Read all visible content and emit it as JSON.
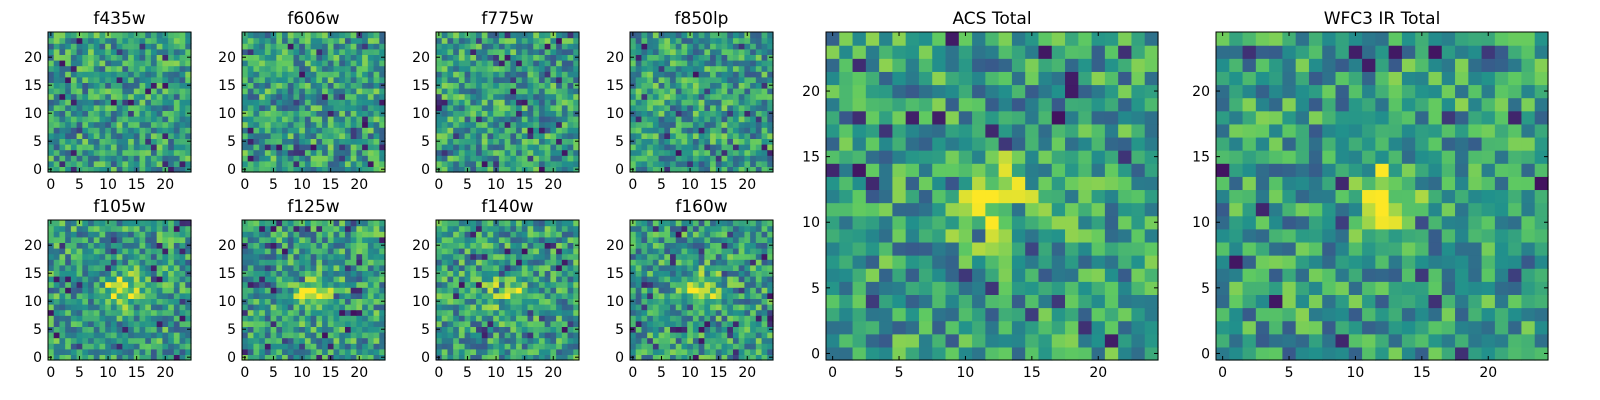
{
  "figure": {
    "colormap": [
      "#440154",
      "#3b528b",
      "#21918c",
      "#5ec962",
      "#fde725"
    ],
    "seed_note": ""
  },
  "chart_data": [
    {
      "type": "heatmap",
      "title": "f435w",
      "grid": [
        25,
        25
      ],
      "xticks": [
        0,
        5,
        10,
        15,
        20
      ],
      "yticks": [
        0,
        5,
        10,
        15,
        20
      ],
      "xlim": [
        0,
        24
      ],
      "ylim": [
        0,
        24
      ],
      "colorbar": false,
      "legend": "none"
    },
    {
      "type": "heatmap",
      "title": "f606w",
      "grid": [
        25,
        25
      ],
      "xticks": [
        0,
        5,
        10,
        15,
        20
      ],
      "yticks": [
        0,
        5,
        10,
        15,
        20
      ],
      "xlim": [
        0,
        24
      ],
      "ylim": [
        0,
        24
      ],
      "colorbar": false,
      "legend": "none"
    },
    {
      "type": "heatmap",
      "title": "f775w",
      "grid": [
        25,
        25
      ],
      "xticks": [
        0,
        5,
        10,
        15,
        20
      ],
      "yticks": [
        0,
        5,
        10,
        15,
        20
      ],
      "xlim": [
        0,
        24
      ],
      "ylim": [
        0,
        24
      ],
      "colorbar": false,
      "legend": "none"
    },
    {
      "type": "heatmap",
      "title": "f850lp",
      "grid": [
        25,
        25
      ],
      "xticks": [
        0,
        5,
        10,
        15,
        20
      ],
      "yticks": [
        0,
        5,
        10,
        15,
        20
      ],
      "xlim": [
        0,
        24
      ],
      "ylim": [
        0,
        24
      ],
      "colorbar": false,
      "legend": "none"
    },
    {
      "type": "heatmap",
      "title": "f105w",
      "grid": [
        25,
        25
      ],
      "xticks": [
        0,
        5,
        10,
        15,
        20
      ],
      "yticks": [
        0,
        5,
        10,
        15,
        20
      ],
      "xlim": [
        0,
        24
      ],
      "ylim": [
        0,
        24
      ],
      "colorbar": false,
      "legend": "none"
    },
    {
      "type": "heatmap",
      "title": "f125w",
      "grid": [
        25,
        25
      ],
      "xticks": [
        0,
        5,
        10,
        15,
        20
      ],
      "yticks": [
        0,
        5,
        10,
        15,
        20
      ],
      "xlim": [
        0,
        24
      ],
      "ylim": [
        0,
        24
      ],
      "colorbar": false,
      "legend": "none"
    },
    {
      "type": "heatmap",
      "title": "f140w",
      "grid": [
        25,
        25
      ],
      "xticks": [
        0,
        5,
        10,
        15,
        20
      ],
      "yticks": [
        0,
        5,
        10,
        15,
        20
      ],
      "xlim": [
        0,
        24
      ],
      "ylim": [
        0,
        24
      ],
      "colorbar": false,
      "legend": "none"
    },
    {
      "type": "heatmap",
      "title": "f160w",
      "grid": [
        25,
        25
      ],
      "xticks": [
        0,
        5,
        10,
        15,
        20
      ],
      "yticks": [
        0,
        5,
        10,
        15,
        20
      ],
      "xlim": [
        0,
        24
      ],
      "ylim": [
        0,
        24
      ],
      "colorbar": false,
      "legend": "none"
    },
    {
      "type": "heatmap",
      "title": "ACS Total",
      "grid": [
        25,
        25
      ],
      "xticks": [
        0,
        5,
        10,
        15,
        20
      ],
      "yticks": [
        0,
        5,
        10,
        15,
        20
      ],
      "xlim": [
        0,
        24
      ],
      "ylim": [
        0,
        24
      ],
      "colorbar": false,
      "legend": "none"
    },
    {
      "type": "heatmap",
      "title": "WFC3 IR Total",
      "grid": [
        25,
        25
      ],
      "xticks": [
        0,
        5,
        10,
        15,
        20
      ],
      "yticks": [
        0,
        5,
        10,
        15,
        20
      ],
      "xlim": [
        0,
        24
      ],
      "ylim": [
        0,
        24
      ],
      "colorbar": false,
      "legend": "none"
    }
  ]
}
